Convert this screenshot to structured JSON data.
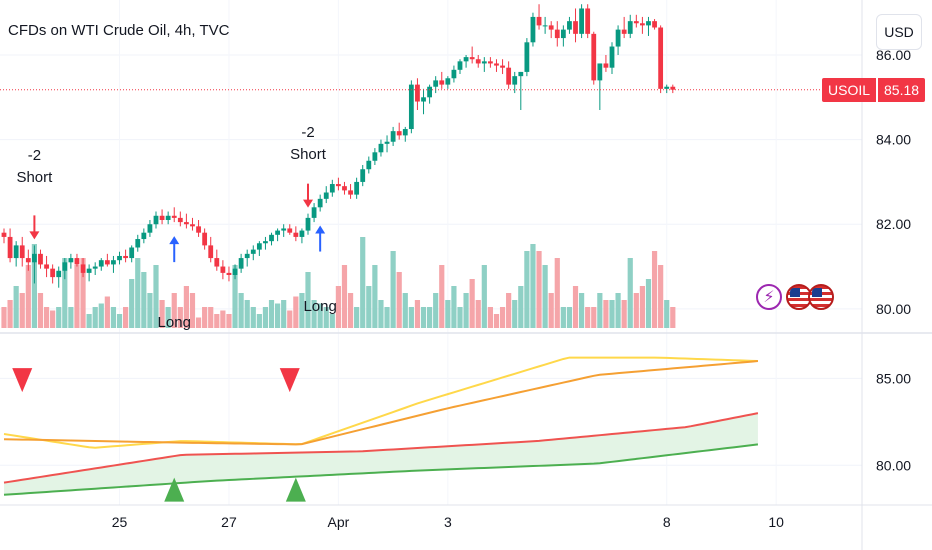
{
  "header": {
    "title": "CFDs on WTI Crude Oil, 4h, TVC",
    "currency": "USD"
  },
  "last_price": {
    "symbol": "USOIL",
    "value": "85.18",
    "color": "#f23645"
  },
  "colors": {
    "up": "#089981",
    "down": "#f23645",
    "vol_up": "#8fd0c5",
    "vol_down": "#f5a5a9",
    "yellow": "#ffd84a",
    "orange": "#f5a033",
    "red": "#ef5350",
    "green": "#4caf50",
    "band_fill": "#e3f4e5",
    "marker_blue": "#2962ff"
  },
  "icons": [
    "bolt-icon",
    "us-flag-icon",
    "us-flag-icon"
  ],
  "annotations": [
    {
      "lines": [
        "-2",
        "Short"
      ],
      "index": 5
    },
    {
      "lines": [
        "-2",
        "Short"
      ],
      "index": 50
    },
    {
      "lines": [
        "Long"
      ],
      "index": 28
    },
    {
      "lines": [
        "Long"
      ],
      "index": 52
    }
  ],
  "chart_data": [
    {
      "type": "candlestick",
      "y_ticks": [
        "86.00",
        "84.00",
        "82.00",
        "80.00"
      ],
      "ylim": [
        79.5,
        87.3
      ],
      "x_ticks": [
        {
          "label": "25",
          "index": 19
        },
        {
          "label": "27",
          "index": 37
        },
        {
          "label": "Apr",
          "index": 55
        },
        {
          "label": "3",
          "index": 73
        },
        {
          "label": "8",
          "index": 109
        },
        {
          "label": "10",
          "index": 127
        }
      ],
      "candles": [
        [
          81.8,
          81.9,
          81.55,
          81.7,
          0.3
        ],
        [
          81.7,
          81.9,
          81.1,
          81.2,
          0.4
        ],
        [
          81.2,
          81.6,
          81.0,
          81.5,
          0.6
        ],
        [
          81.5,
          81.7,
          81.0,
          81.2,
          0.5
        ],
        [
          81.2,
          81.4,
          80.9,
          81.1,
          0.9
        ],
        [
          81.1,
          81.5,
          80.6,
          81.3,
          1.2
        ],
        [
          81.3,
          81.4,
          80.95,
          81.05,
          0.5
        ],
        [
          81.05,
          81.25,
          80.75,
          80.95,
          0.3
        ],
        [
          80.95,
          81.05,
          80.6,
          80.75,
          0.25
        ],
        [
          80.75,
          81.0,
          80.5,
          80.9,
          0.3
        ],
        [
          80.9,
          81.2,
          80.7,
          81.1,
          1.0
        ],
        [
          81.1,
          81.3,
          80.95,
          81.2,
          0.3
        ],
        [
          81.2,
          81.3,
          81.0,
          81.05,
          0.9
        ],
        [
          81.05,
          81.2,
          80.75,
          80.85,
          1.0
        ],
        [
          80.85,
          81.05,
          80.65,
          80.95,
          0.2
        ],
        [
          80.95,
          81.1,
          80.8,
          81.0,
          0.3
        ],
        [
          81.0,
          81.2,
          80.9,
          81.15,
          0.35
        ],
        [
          81.15,
          81.3,
          81.0,
          81.05,
          0.45
        ],
        [
          81.05,
          81.25,
          80.85,
          81.15,
          0.3
        ],
        [
          81.15,
          81.35,
          81.05,
          81.25,
          0.2
        ],
        [
          81.25,
          81.4,
          81.1,
          81.2,
          0.3
        ],
        [
          81.2,
          81.5,
          81.1,
          81.45,
          0.7
        ],
        [
          81.45,
          81.75,
          81.35,
          81.65,
          1.0
        ],
        [
          81.65,
          81.9,
          81.55,
          81.8,
          0.8
        ],
        [
          81.8,
          82.1,
          81.7,
          82.0,
          0.5
        ],
        [
          82.0,
          82.3,
          81.9,
          82.2,
          0.9
        ],
        [
          82.2,
          82.35,
          82.0,
          82.1,
          0.4
        ],
        [
          82.1,
          82.3,
          82.0,
          82.2,
          0.3
        ],
        [
          82.2,
          82.4,
          82.05,
          82.15,
          0.5
        ],
        [
          82.15,
          82.3,
          81.95,
          82.05,
          0.3
        ],
        [
          82.05,
          82.25,
          81.9,
          82.0,
          0.6
        ],
        [
          82.0,
          82.15,
          81.85,
          81.95,
          0.5
        ],
        [
          81.95,
          82.1,
          81.7,
          81.8,
          0.15
        ],
        [
          81.8,
          81.9,
          81.4,
          81.5,
          0.3
        ],
        [
          81.5,
          81.7,
          81.1,
          81.2,
          0.3
        ],
        [
          81.2,
          81.4,
          80.9,
          81.0,
          0.2
        ],
        [
          81.0,
          81.15,
          80.7,
          80.85,
          0.25
        ],
        [
          80.85,
          81.0,
          80.65,
          80.8,
          0.2
        ],
        [
          80.8,
          81.05,
          80.7,
          80.95,
          0.9
        ],
        [
          80.95,
          81.3,
          80.85,
          81.2,
          0.5
        ],
        [
          81.2,
          81.4,
          81.0,
          81.3,
          0.4
        ],
        [
          81.3,
          81.5,
          81.15,
          81.4,
          0.3
        ],
        [
          81.4,
          81.6,
          81.25,
          81.55,
          0.2
        ],
        [
          81.55,
          81.7,
          81.4,
          81.6,
          0.3
        ],
        [
          81.6,
          81.8,
          81.5,
          81.75,
          0.4
        ],
        [
          81.75,
          81.9,
          81.6,
          81.85,
          0.35
        ],
        [
          81.85,
          82.0,
          81.7,
          81.9,
          0.4
        ],
        [
          81.9,
          82.0,
          81.75,
          81.8,
          0.25
        ],
        [
          81.8,
          81.95,
          81.6,
          81.7,
          0.45
        ],
        [
          81.7,
          81.9,
          81.55,
          81.85,
          0.5
        ],
        [
          81.85,
          82.25,
          81.75,
          82.15,
          0.8
        ],
        [
          82.15,
          82.5,
          82.05,
          82.4,
          0.4
        ],
        [
          82.4,
          82.7,
          82.3,
          82.6,
          0.35
        ],
        [
          82.6,
          82.9,
          82.5,
          82.75,
          0.3
        ],
        [
          82.75,
          83.05,
          82.65,
          82.95,
          0.2
        ],
        [
          82.95,
          83.1,
          82.8,
          82.9,
          0.6
        ],
        [
          82.9,
          83.0,
          82.7,
          82.8,
          0.9
        ],
        [
          82.8,
          82.95,
          82.6,
          82.7,
          0.5
        ],
        [
          82.7,
          83.1,
          82.6,
          83.0,
          0.3
        ],
        [
          83.0,
          83.4,
          82.9,
          83.3,
          1.3
        ],
        [
          83.3,
          83.6,
          83.2,
          83.5,
          0.6
        ],
        [
          83.5,
          83.8,
          83.4,
          83.7,
          0.9
        ],
        [
          83.7,
          84.0,
          83.6,
          83.9,
          0.4
        ],
        [
          83.9,
          84.1,
          83.7,
          83.95,
          0.3
        ],
        [
          83.95,
          84.3,
          83.85,
          84.2,
          1.1
        ],
        [
          84.2,
          84.4,
          84.0,
          84.1,
          0.8
        ],
        [
          84.1,
          84.3,
          83.95,
          84.25,
          0.5
        ],
        [
          84.25,
          85.4,
          84.15,
          85.3,
          0.3
        ],
        [
          85.3,
          85.45,
          84.7,
          84.9,
          0.4
        ],
        [
          84.9,
          85.2,
          84.6,
          85.0,
          0.3
        ],
        [
          85.0,
          85.3,
          84.85,
          85.25,
          0.3
        ],
        [
          85.25,
          85.5,
          85.1,
          85.4,
          0.5
        ],
        [
          85.4,
          85.6,
          85.2,
          85.3,
          0.9
        ],
        [
          85.3,
          85.5,
          85.2,
          85.45,
          0.4
        ],
        [
          85.45,
          85.75,
          85.35,
          85.65,
          0.6
        ],
        [
          85.65,
          85.9,
          85.55,
          85.85,
          0.3
        ],
        [
          85.85,
          86.0,
          85.7,
          85.95,
          0.5
        ],
        [
          85.95,
          86.2,
          85.8,
          85.9,
          0.7
        ],
        [
          85.9,
          86.0,
          85.7,
          85.8,
          0.4
        ],
        [
          85.8,
          85.95,
          85.6,
          85.85,
          0.9
        ],
        [
          85.85,
          85.95,
          85.7,
          85.8,
          0.3
        ],
        [
          85.8,
          85.9,
          85.6,
          85.75,
          0.2
        ],
        [
          85.75,
          85.9,
          85.55,
          85.7,
          0.3
        ],
        [
          85.7,
          85.85,
          85.2,
          85.3,
          0.5
        ],
        [
          85.3,
          85.6,
          85.1,
          85.5,
          0.4
        ],
        [
          85.5,
          85.6,
          84.7,
          85.6,
          0.6
        ],
        [
          85.6,
          86.4,
          85.5,
          86.3,
          1.1
        ],
        [
          86.3,
          87.0,
          86.2,
          86.9,
          1.2
        ],
        [
          86.9,
          87.2,
          86.6,
          86.7,
          1.1
        ],
        [
          86.7,
          86.9,
          86.5,
          86.7,
          0.9
        ],
        [
          86.7,
          86.8,
          86.4,
          86.6,
          0.5
        ],
        [
          86.6,
          86.8,
          86.2,
          86.4,
          1.0
        ],
        [
          86.4,
          86.7,
          86.2,
          86.6,
          0.3
        ],
        [
          86.6,
          86.9,
          86.5,
          86.8,
          0.3
        ],
        [
          86.8,
          87.1,
          86.3,
          86.5,
          0.6
        ],
        [
          86.5,
          87.2,
          86.4,
          87.1,
          0.5
        ],
        [
          87.1,
          87.2,
          86.4,
          86.5,
          0.3
        ],
        [
          86.5,
          86.55,
          85.3,
          85.4,
          0.3
        ],
        [
          85.4,
          85.8,
          84.7,
          85.8,
          0.5
        ],
        [
          85.8,
          86.0,
          85.6,
          85.7,
          0.4
        ],
        [
          85.7,
          86.3,
          85.55,
          86.2,
          0.4
        ],
        [
          86.2,
          86.7,
          86.0,
          86.6,
          0.5
        ],
        [
          86.6,
          86.9,
          86.4,
          86.5,
          0.4
        ],
        [
          86.5,
          86.95,
          86.4,
          86.8,
          1.0
        ],
        [
          86.8,
          86.95,
          86.65,
          86.75,
          0.5
        ],
        [
          86.75,
          86.9,
          86.5,
          86.7,
          0.6
        ],
        [
          86.7,
          86.9,
          86.45,
          86.8,
          0.7
        ],
        [
          86.8,
          86.85,
          86.6,
          86.65,
          1.1
        ],
        [
          86.65,
          86.7,
          85.1,
          85.2,
          0.9
        ],
        [
          85.2,
          85.3,
          85.1,
          85.25,
          0.4
        ],
        [
          85.25,
          85.3,
          85.1,
          85.18,
          0.3
        ]
      ],
      "candle_fields": [
        "open",
        "high",
        "low",
        "close",
        "volume"
      ],
      "markers": [
        {
          "type": "arrow-down",
          "index": 5,
          "color": "#f23645"
        },
        {
          "type": "arrow-down",
          "index": 50,
          "color": "#f23645"
        },
        {
          "type": "arrow-up",
          "index": 28,
          "color": "#2962ff"
        },
        {
          "type": "arrow-up",
          "index": 52,
          "color": "#2962ff"
        }
      ]
    },
    {
      "type": "line",
      "y_ticks": [
        "85.00",
        "80.00"
      ],
      "ylim": [
        78,
        87.5
      ],
      "series": [
        {
          "color": "#ffd84a",
          "points": [
            [
              0,
              81.8
            ],
            [
              15,
              81.0
            ],
            [
              30,
              81.4
            ],
            [
              50,
              81.2
            ],
            [
              70,
              83.6
            ],
            [
              95,
              86.2
            ],
            [
              110,
              86.2
            ],
            [
              127,
              86.0
            ]
          ]
        },
        {
          "color": "#f5a033",
          "points": [
            [
              0,
              81.5
            ],
            [
              30,
              81.3
            ],
            [
              50,
              81.2
            ],
            [
              75,
              83.3
            ],
            [
              100,
              85.2
            ],
            [
              127,
              86.0
            ]
          ]
        },
        {
          "color": "#ef5350",
          "points": [
            [
              0,
              79.0
            ],
            [
              30,
              80.6
            ],
            [
              60,
              80.8
            ],
            [
              90,
              81.4
            ],
            [
              115,
              82.2
            ],
            [
              127,
              83.0
            ]
          ]
        },
        {
          "color": "#4caf50",
          "points": [
            [
              0,
              78.3
            ],
            [
              35,
              79.1
            ],
            [
              70,
              79.7
            ],
            [
              100,
              80.1
            ],
            [
              127,
              81.2
            ]
          ]
        }
      ],
      "markers": [
        {
          "type": "triangle-down",
          "index": 3,
          "value": 84.9,
          "color": "#f23645"
        },
        {
          "type": "triangle-down",
          "index": 47,
          "value": 84.9,
          "color": "#f23645"
        },
        {
          "type": "triangle-up",
          "index": 28,
          "value": 78.6,
          "color": "#4caf50"
        },
        {
          "type": "triangle-up",
          "index": 48,
          "value": 78.6,
          "color": "#4caf50"
        }
      ]
    }
  ]
}
